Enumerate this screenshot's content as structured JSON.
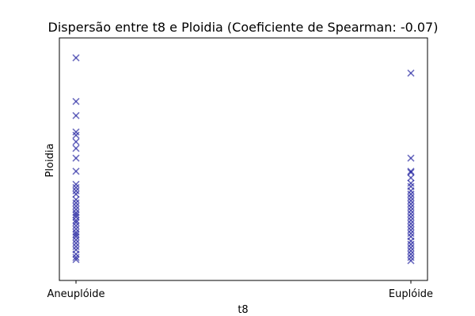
{
  "chart_data": {
    "type": "scatter",
    "title": "Dispersão entre t8 e Ploidia (Coeficiente de Spearman: -0.07)",
    "xlabel": "t8",
    "ylabel": "Ploidia",
    "categories": [
      "Aneuplóide",
      "Euplóide"
    ],
    "y_tick_labels_shown": false,
    "grid": false,
    "marker": "x",
    "color": "#1f1f9e",
    "ylim": [
      0,
      100
    ],
    "series": [
      {
        "category": "Aneuplóide",
        "y": [
          97,
          77,
          70.5,
          63,
          61.5,
          58.5,
          55.5,
          51,
          45,
          39,
          37.5,
          36,
          34.5,
          32,
          30.5,
          29,
          27.5,
          26,
          25,
          24,
          22.5,
          21.5,
          20,
          18.5,
          17,
          16,
          15,
          13.5,
          12,
          10.5,
          9,
          7,
          5.5,
          4.5
        ]
      },
      {
        "category": "Euplóide",
        "y": [
          90,
          51,
          45,
          44.5,
          42,
          39.5,
          38,
          36,
          34.5,
          33,
          31.5,
          30,
          28.5,
          27,
          25.5,
          24,
          22.5,
          21,
          19.5,
          18,
          16.5,
          15,
          13,
          11.5,
          10,
          8.5,
          7,
          5.5,
          4
        ]
      }
    ]
  }
}
